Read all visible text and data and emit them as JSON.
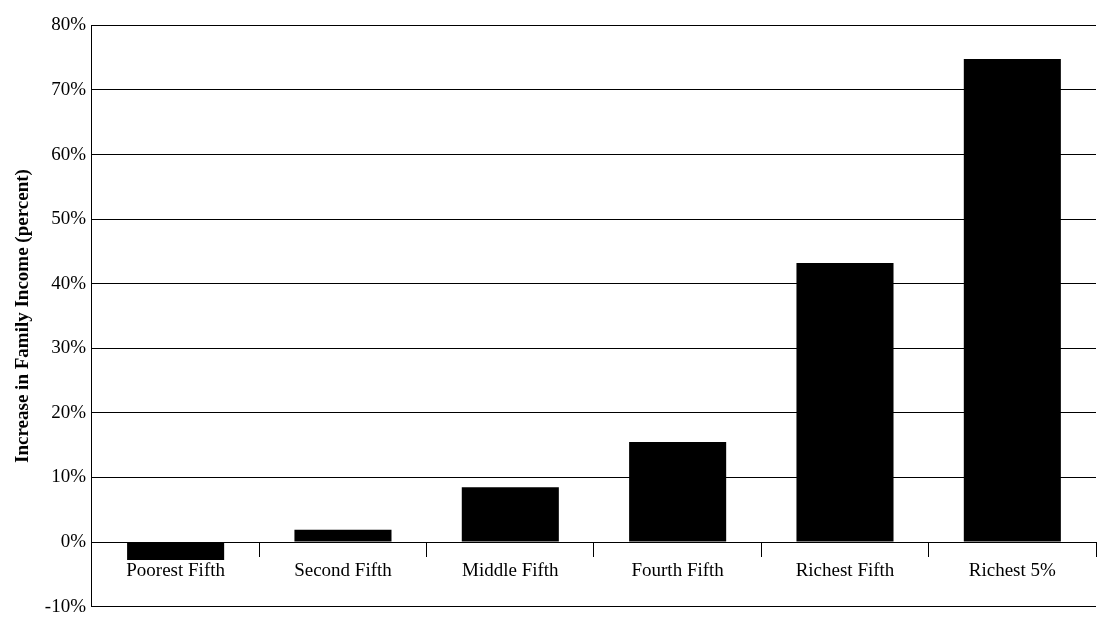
{
  "chart_data": {
    "type": "bar",
    "ylabel": "Increase in Family Income (percent)",
    "categories": [
      "Poorest Fifth",
      "Second Fifth",
      "Middle Fifth",
      "Fourth Fifth",
      "Richest Fifth",
      "Richest 5%"
    ],
    "values": [
      -2.8,
      1.9,
      8.5,
      15.5,
      43.2,
      74.8
    ],
    "color": "#000000",
    "ylim": [
      -10,
      80
    ],
    "yticks": [
      {
        "value": -10,
        "label": "-10%"
      },
      {
        "value": 0,
        "label": "0%"
      },
      {
        "value": 10,
        "label": "10%"
      },
      {
        "value": 20,
        "label": "20%"
      },
      {
        "value": 30,
        "label": "30%"
      },
      {
        "value": 40,
        "label": "40%"
      },
      {
        "value": 50,
        "label": "50%"
      },
      {
        "value": 60,
        "label": "60%"
      },
      {
        "value": 70,
        "label": "70%"
      },
      {
        "value": 80,
        "label": "80%"
      }
    ],
    "grid": "y",
    "legend": false
  }
}
